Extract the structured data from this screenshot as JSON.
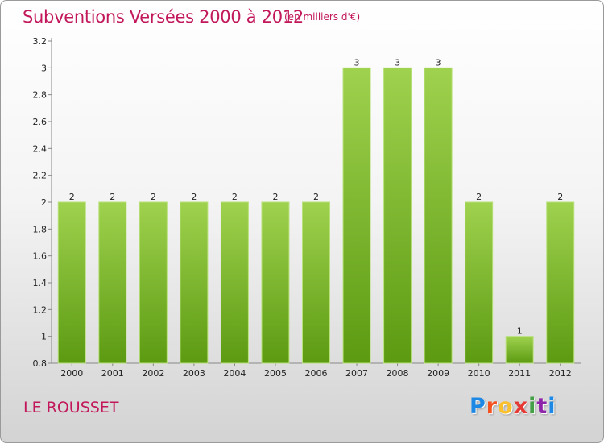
{
  "header": {
    "title": "Subventions Versées 2000 à 2012",
    "unit_note": "(en milliers d'€)"
  },
  "footer": {
    "commune": "LE ROUSSET",
    "logo_letters": [
      "P",
      "r",
      "o",
      "x",
      "i",
      "t",
      "i"
    ],
    "logo_colors": [
      "#1e88e5",
      "#f4511e",
      "#fbc02d",
      "#e53935",
      "#43a047",
      "#8e24aa",
      "#1e88e5"
    ]
  },
  "chart_data": {
    "type": "bar",
    "categories": [
      "2000",
      "2001",
      "2002",
      "2003",
      "2004",
      "2005",
      "2006",
      "2007",
      "2008",
      "2009",
      "2010",
      "2011",
      "2012"
    ],
    "values": [
      2,
      2,
      2,
      2,
      2,
      2,
      2,
      3,
      3,
      3,
      2,
      1,
      2
    ],
    "value_labels": [
      "2",
      "2",
      "2",
      "2",
      "2",
      "2",
      "2",
      "3",
      "3",
      "3",
      "2",
      "1",
      "2"
    ],
    "y_ticks": [
      0.8,
      1,
      1.2,
      1.4,
      1.6,
      1.8,
      2,
      2.2,
      2.4,
      2.6,
      2.8,
      3,
      3.2
    ],
    "y_tick_labels": [
      "0.8",
      "1",
      "1.2",
      "1.4",
      "1.6",
      "1.8",
      "2",
      "2.2",
      "2.4",
      "2.6",
      "2.8",
      "3",
      "3.2"
    ],
    "ylim": [
      0.8,
      3.2
    ],
    "grid": false,
    "legend": "none",
    "colors": {
      "bar_light": "#9fd24e",
      "bar_dark": "#5c9a12",
      "bar_edge": "#b8e07a",
      "axis": "#888888",
      "tick_text": "#222222"
    }
  }
}
